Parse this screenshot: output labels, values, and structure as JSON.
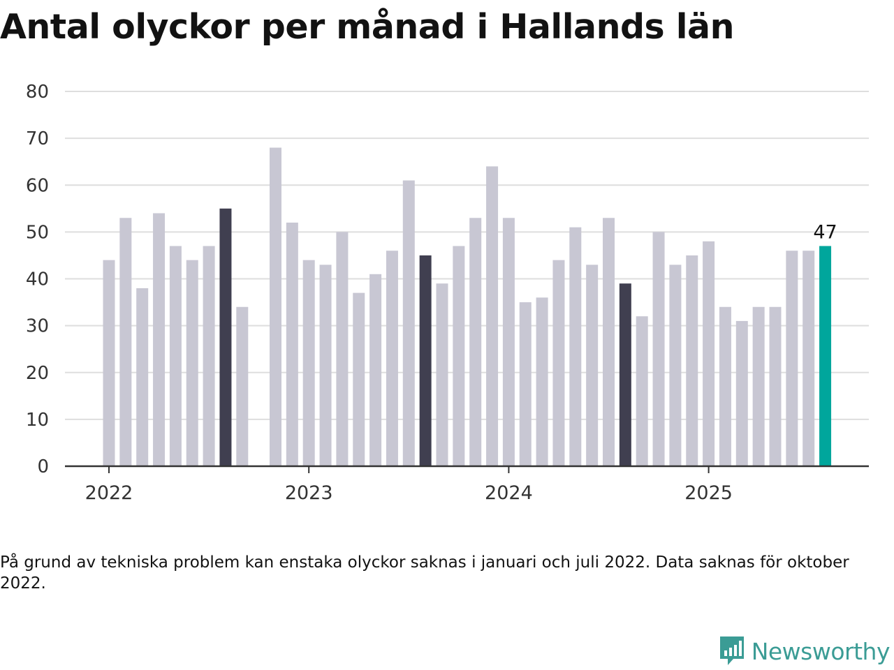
{
  "title": "Antal olyckor per månad i Hallands län",
  "note": "På grund av tekniska problem kan enstaka olyckor saknas i januari och juli 2022. Data saknas för oktober 2022.",
  "brand": {
    "name": "Newsworthy",
    "logo_icon": "newsworthy-logo-icon",
    "color": "#3b9c95"
  },
  "chart_data": {
    "type": "bar",
    "title": "Antal olyckor per månad i Hallands län",
    "x_tick_labels": [
      "2022",
      "2023",
      "2024",
      "2025"
    ],
    "y_ticks": [
      0,
      10,
      20,
      30,
      40,
      50,
      60,
      70,
      80
    ],
    "ylim": [
      0,
      80
    ],
    "grid": true,
    "colors": {
      "default": "#c8c7d3",
      "august": "#403f50",
      "latest": "#00a69c",
      "grid": "#dedede",
      "axis": "#333333"
    },
    "categories": [
      "2022-01",
      "2022-02",
      "2022-03",
      "2022-04",
      "2022-05",
      "2022-06",
      "2022-07",
      "2022-08",
      "2022-09",
      "2022-10",
      "2022-11",
      "2022-12",
      "2023-01",
      "2023-02",
      "2023-03",
      "2023-04",
      "2023-05",
      "2023-06",
      "2023-07",
      "2023-08",
      "2023-09",
      "2023-10",
      "2023-11",
      "2023-12",
      "2024-01",
      "2024-02",
      "2024-03",
      "2024-04",
      "2024-05",
      "2024-06",
      "2024-07",
      "2024-08",
      "2024-09",
      "2024-10",
      "2024-11",
      "2024-12",
      "2025-01",
      "2025-02",
      "2025-03",
      "2025-04",
      "2025-05",
      "2025-06",
      "2025-07",
      "2025-08"
    ],
    "values": [
      44,
      53,
      38,
      54,
      47,
      44,
      47,
      55,
      34,
      null,
      68,
      52,
      44,
      43,
      50,
      37,
      41,
      46,
      61,
      45,
      39,
      47,
      53,
      64,
      53,
      35,
      36,
      44,
      51,
      43,
      53,
      39,
      32,
      50,
      43,
      45,
      48,
      34,
      31,
      34,
      34,
      46,
      46,
      47
    ],
    "highlighted_dark": [
      "2022-08",
      "2023-08",
      "2024-08"
    ],
    "highlighted_latest": "2025-08",
    "value_labels": [
      {
        "category": "2025-08",
        "text": "47"
      }
    ]
  }
}
